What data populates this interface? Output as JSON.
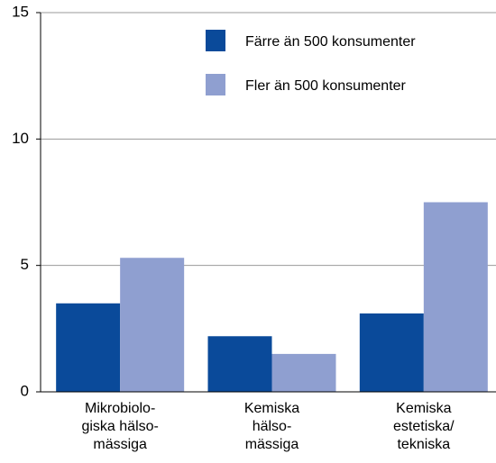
{
  "chart_data": {
    "type": "grouped_bar",
    "categories": [
      [
        "Mikrobiolo-",
        "giska hälso-",
        "mässiga"
      ],
      [
        "Kemiska",
        "hälso-",
        "mässiga"
      ],
      [
        "Kemiska",
        "estetiska/",
        "tekniska"
      ]
    ],
    "series": [
      {
        "name": "Färre än 500 konsumenter",
        "color": "#0a4a9a",
        "values": [
          3.5,
          2.2,
          3.1
        ]
      },
      {
        "name": "Fler än 500 konsumenter",
        "color": "#8f9fd0",
        "values": [
          5.3,
          1.5,
          7.5
        ]
      }
    ],
    "ylim": [
      0,
      15
    ],
    "yticks": [
      0,
      5,
      10,
      15
    ],
    "grid": true,
    "legend": "top-right"
  }
}
